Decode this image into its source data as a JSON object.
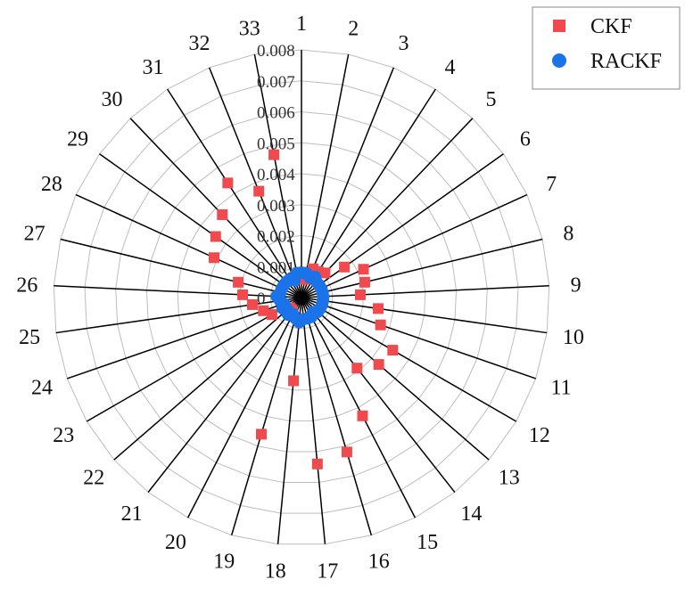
{
  "chart_data": {
    "type": "radar",
    "categories": [
      "1",
      "2",
      "3",
      "4",
      "5",
      "6",
      "7",
      "8",
      "9",
      "10",
      "11",
      "12",
      "13",
      "14",
      "15",
      "16",
      "17",
      "18",
      "19",
      "20",
      "21",
      "22",
      "23",
      "24",
      "25",
      "26",
      "27",
      "28",
      "29",
      "30",
      "31",
      "32",
      "33"
    ],
    "radial_ticks": [
      "0",
      "0.001",
      "0.002",
      "0.003",
      "0.004",
      "0.005",
      "0.006",
      "0.007",
      "0.008"
    ],
    "rlim": [
      0,
      0.008
    ],
    "grid": true,
    "legend_position": "top-right",
    "series": [
      {
        "name": "CKF",
        "color": "#f04a4f",
        "marker": "square",
        "values": [
          0.0006,
          0.0006,
          0.001,
          0.001,
          0.0011,
          0.0017,
          0.0022,
          0.0021,
          0.0019,
          0.0025,
          0.0027,
          0.0034,
          0.0033,
          0.0029,
          0.0043,
          0.0052,
          0.0054,
          0.0027,
          0.0046,
          0.0006,
          0.0005,
          0.0005,
          0.0011,
          0.0013,
          0.0016,
          0.0019,
          0.0021,
          0.0031,
          0.0034,
          0.0037,
          0.0044,
          0.0037,
          0.0047
        ]
      },
      {
        "name": "RACKF",
        "color": "#1a73e8",
        "marker": "circle",
        "values": [
          0.0008,
          0.0008,
          0.0007,
          0.0008,
          0.0007,
          0.0007,
          0.0007,
          0.0007,
          0.0007,
          0.0007,
          0.0007,
          0.0007,
          0.0007,
          0.0006,
          0.0007,
          0.0007,
          0.0007,
          0.0008,
          0.0007,
          0.0006,
          0.0007,
          0.0006,
          0.0007,
          0.0006,
          0.0007,
          0.0008,
          0.0007,
          0.0007,
          0.0007,
          0.0007,
          0.0007,
          0.0006,
          0.0008
        ]
      }
    ]
  }
}
